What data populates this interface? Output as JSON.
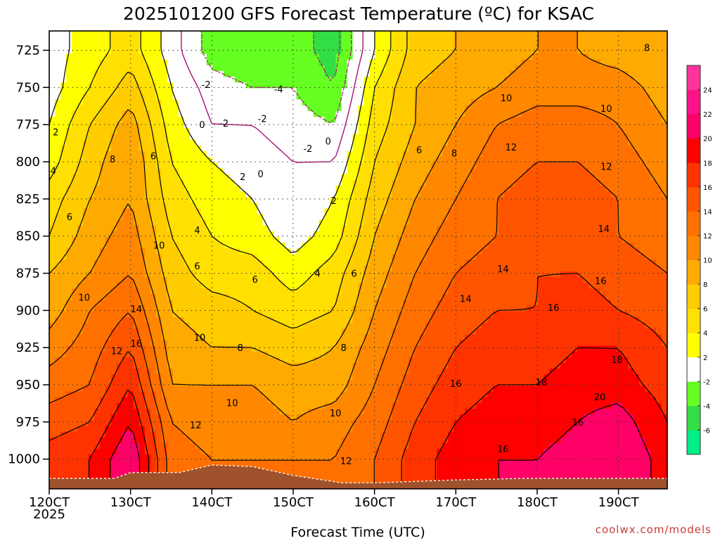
{
  "chart_data": {
    "type": "heatmap",
    "title": "2025101200 GFS Forecast Temperature (ºC) for KSAC",
    "xlabel": "Forecast Time (UTC)",
    "ylabel": "",
    "credit": "coolwx.com/models",
    "x_range_days": [
      12.0,
      19.6
    ],
    "x_ticks": [
      {
        "day": 12,
        "label": "120CT",
        "sub": "2025"
      },
      {
        "day": 13,
        "label": "130CT"
      },
      {
        "day": 14,
        "label": "140CT"
      },
      {
        "day": 15,
        "label": "150CT"
      },
      {
        "day": 16,
        "label": "160CT"
      },
      {
        "day": 17,
        "label": "170CT"
      },
      {
        "day": 18,
        "label": "180CT"
      },
      {
        "day": 19,
        "label": "190CT"
      }
    ],
    "y_ticks_hpa": [
      725,
      750,
      775,
      800,
      825,
      850,
      875,
      900,
      925,
      950,
      975,
      1000
    ],
    "y_range_hpa": [
      712,
      1020
    ],
    "colorbar": {
      "levels": [
        -6,
        -4,
        -2,
        2,
        4,
        6,
        8,
        10,
        12,
        14,
        16,
        18,
        20,
        22,
        24
      ],
      "colors": [
        "#00ee88",
        "#33dd44",
        "#66ff22",
        "#ffffff",
        "#ffff00",
        "#ffe000",
        "#ffcc00",
        "#ffaa00",
        "#ff8800",
        "#ff7000",
        "#ff5500",
        "#ff3300",
        "#ff0000",
        "#ff0066",
        "#ff1188",
        "#ff3399"
      ]
    },
    "x_days": [
      12.0,
      12.5,
      13.0,
      13.5,
      14.0,
      14.5,
      15.0,
      15.5,
      16.0,
      16.5,
      17.0,
      17.5,
      18.0,
      18.5,
      19.0,
      19.6
    ],
    "temperature_profiles": [
      {
        "p": 725,
        "values": [
          1,
          3,
          5,
          1,
          -3,
          -4,
          -3,
          -5,
          2,
          7,
          8,
          9,
          10,
          10,
          9,
          8
        ]
      },
      {
        "p": 750,
        "values": [
          1,
          4,
          7,
          2,
          -1,
          -2,
          -2,
          -4,
          4,
          8,
          9,
          10,
          11,
          11,
          11,
          9
        ]
      },
      {
        "p": 775,
        "values": [
          2,
          6,
          9,
          3,
          0,
          0,
          -1,
          -2,
          5,
          8,
          10,
          12,
          13,
          13,
          12,
          10
        ]
      },
      {
        "p": 800,
        "values": [
          3,
          7,
          10,
          4,
          2,
          1,
          0,
          0,
          6,
          9,
          11,
          13,
          14,
          14,
          13,
          11
        ]
      },
      {
        "p": 825,
        "values": [
          5,
          8,
          10,
          5,
          3,
          2,
          0,
          2,
          7,
          10,
          12,
          14,
          15,
          15,
          14,
          12
        ]
      },
      {
        "p": 850,
        "values": [
          6,
          9,
          11,
          6,
          4,
          3,
          1,
          3,
          8,
          11,
          13,
          14,
          15,
          15,
          14,
          13
        ]
      },
      {
        "p": 875,
        "values": [
          8,
          10,
          12,
          7,
          5,
          5,
          3,
          5,
          9,
          12,
          14,
          15,
          16,
          16,
          15,
          14
        ]
      },
      {
        "p": 900,
        "values": [
          9,
          12,
          14,
          8,
          7,
          6,
          5,
          6,
          10,
          13,
          15,
          16,
          16,
          17,
          16,
          15
        ]
      },
      {
        "p": 925,
        "values": [
          11,
          13,
          16,
          9,
          8,
          8,
          7,
          8,
          11,
          14,
          16,
          17,
          17,
          18,
          18,
          16
        ]
      },
      {
        "p": 950,
        "values": [
          13,
          14,
          18,
          10,
          10,
          10,
          9,
          9,
          12,
          15,
          17,
          18,
          18,
          19,
          19,
          17
        ]
      },
      {
        "p": 975,
        "values": [
          15,
          16,
          20,
          12,
          11,
          11,
          10,
          11,
          13,
          16,
          18,
          19,
          19,
          20,
          21,
          18
        ]
      },
      {
        "p": 1000,
        "values": [
          17,
          18,
          22,
          13,
          12,
          12,
          12,
          12,
          14,
          17,
          19,
          20,
          20,
          21,
          22,
          19
        ]
      }
    ],
    "contour_labels": [
      {
        "day": 12.08,
        "p": 780,
        "text": "2"
      },
      {
        "day": 12.05,
        "p": 806,
        "text": "4"
      },
      {
        "day": 12.25,
        "p": 837,
        "text": "6"
      },
      {
        "day": 12.78,
        "p": 798,
        "text": "8"
      },
      {
        "day": 13.28,
        "p": 796,
        "text": "6"
      },
      {
        "day": 13.35,
        "p": 856,
        "text": "10"
      },
      {
        "day": 12.43,
        "p": 891,
        "text": "10"
      },
      {
        "day": 13.07,
        "p": 899,
        "text": "14"
      },
      {
        "day": 12.83,
        "p": 927,
        "text": "12"
      },
      {
        "day": 13.07,
        "p": 922,
        "text": "16"
      },
      {
        "day": 13.93,
        "p": 748,
        "text": "-2"
      },
      {
        "day": 14.82,
        "p": 751,
        "text": "-4"
      },
      {
        "day": 14.62,
        "p": 771,
        "text": "-2"
      },
      {
        "day": 14.15,
        "p": 774,
        "text": "-2"
      },
      {
        "day": 13.88,
        "p": 775,
        "text": "0"
      },
      {
        "day": 15.18,
        "p": 791,
        "text": "-2"
      },
      {
        "day": 15.43,
        "p": 786,
        "text": "0"
      },
      {
        "day": 14.38,
        "p": 810,
        "text": "2"
      },
      {
        "day": 14.6,
        "p": 808,
        "text": "0"
      },
      {
        "day": 15.5,
        "p": 826,
        "text": "2"
      },
      {
        "day": 13.82,
        "p": 846,
        "text": "4"
      },
      {
        "day": 13.82,
        "p": 870,
        "text": "6"
      },
      {
        "day": 14.53,
        "p": 879,
        "text": "6"
      },
      {
        "day": 15.3,
        "p": 875,
        "text": "4"
      },
      {
        "day": 15.75,
        "p": 875,
        "text": "6"
      },
      {
        "day": 13.85,
        "p": 918,
        "text": "10"
      },
      {
        "day": 14.35,
        "p": 925,
        "text": "8"
      },
      {
        "day": 15.62,
        "p": 925,
        "text": "8"
      },
      {
        "day": 13.8,
        "p": 977,
        "text": "12"
      },
      {
        "day": 14.25,
        "p": 962,
        "text": "10"
      },
      {
        "day": 15.52,
        "p": 969,
        "text": "10"
      },
      {
        "day": 15.65,
        "p": 1001,
        "text": "12"
      },
      {
        "day": 16.55,
        "p": 792,
        "text": "6"
      },
      {
        "day": 16.98,
        "p": 794,
        "text": "8"
      },
      {
        "day": 17.62,
        "p": 757,
        "text": "10"
      },
      {
        "day": 17.68,
        "p": 790,
        "text": "12"
      },
      {
        "day": 18.85,
        "p": 764,
        "text": "10"
      },
      {
        "day": 18.85,
        "p": 803,
        "text": "12"
      },
      {
        "day": 18.82,
        "p": 845,
        "text": "14"
      },
      {
        "day": 17.58,
        "p": 872,
        "text": "14"
      },
      {
        "day": 17.12,
        "p": 892,
        "text": "14"
      },
      {
        "day": 18.2,
        "p": 898,
        "text": "16"
      },
      {
        "day": 18.78,
        "p": 880,
        "text": "16"
      },
      {
        "day": 18.98,
        "p": 933,
        "text": "18"
      },
      {
        "day": 18.05,
        "p": 948,
        "text": "18"
      },
      {
        "day": 17.0,
        "p": 949,
        "text": "16"
      },
      {
        "day": 18.77,
        "p": 958,
        "text": "20"
      },
      {
        "day": 18.5,
        "p": 975,
        "text": "16"
      },
      {
        "day": 17.58,
        "p": 993,
        "text": "16"
      },
      {
        "day": 19.35,
        "p": 723,
        "text": "8"
      }
    ]
  }
}
